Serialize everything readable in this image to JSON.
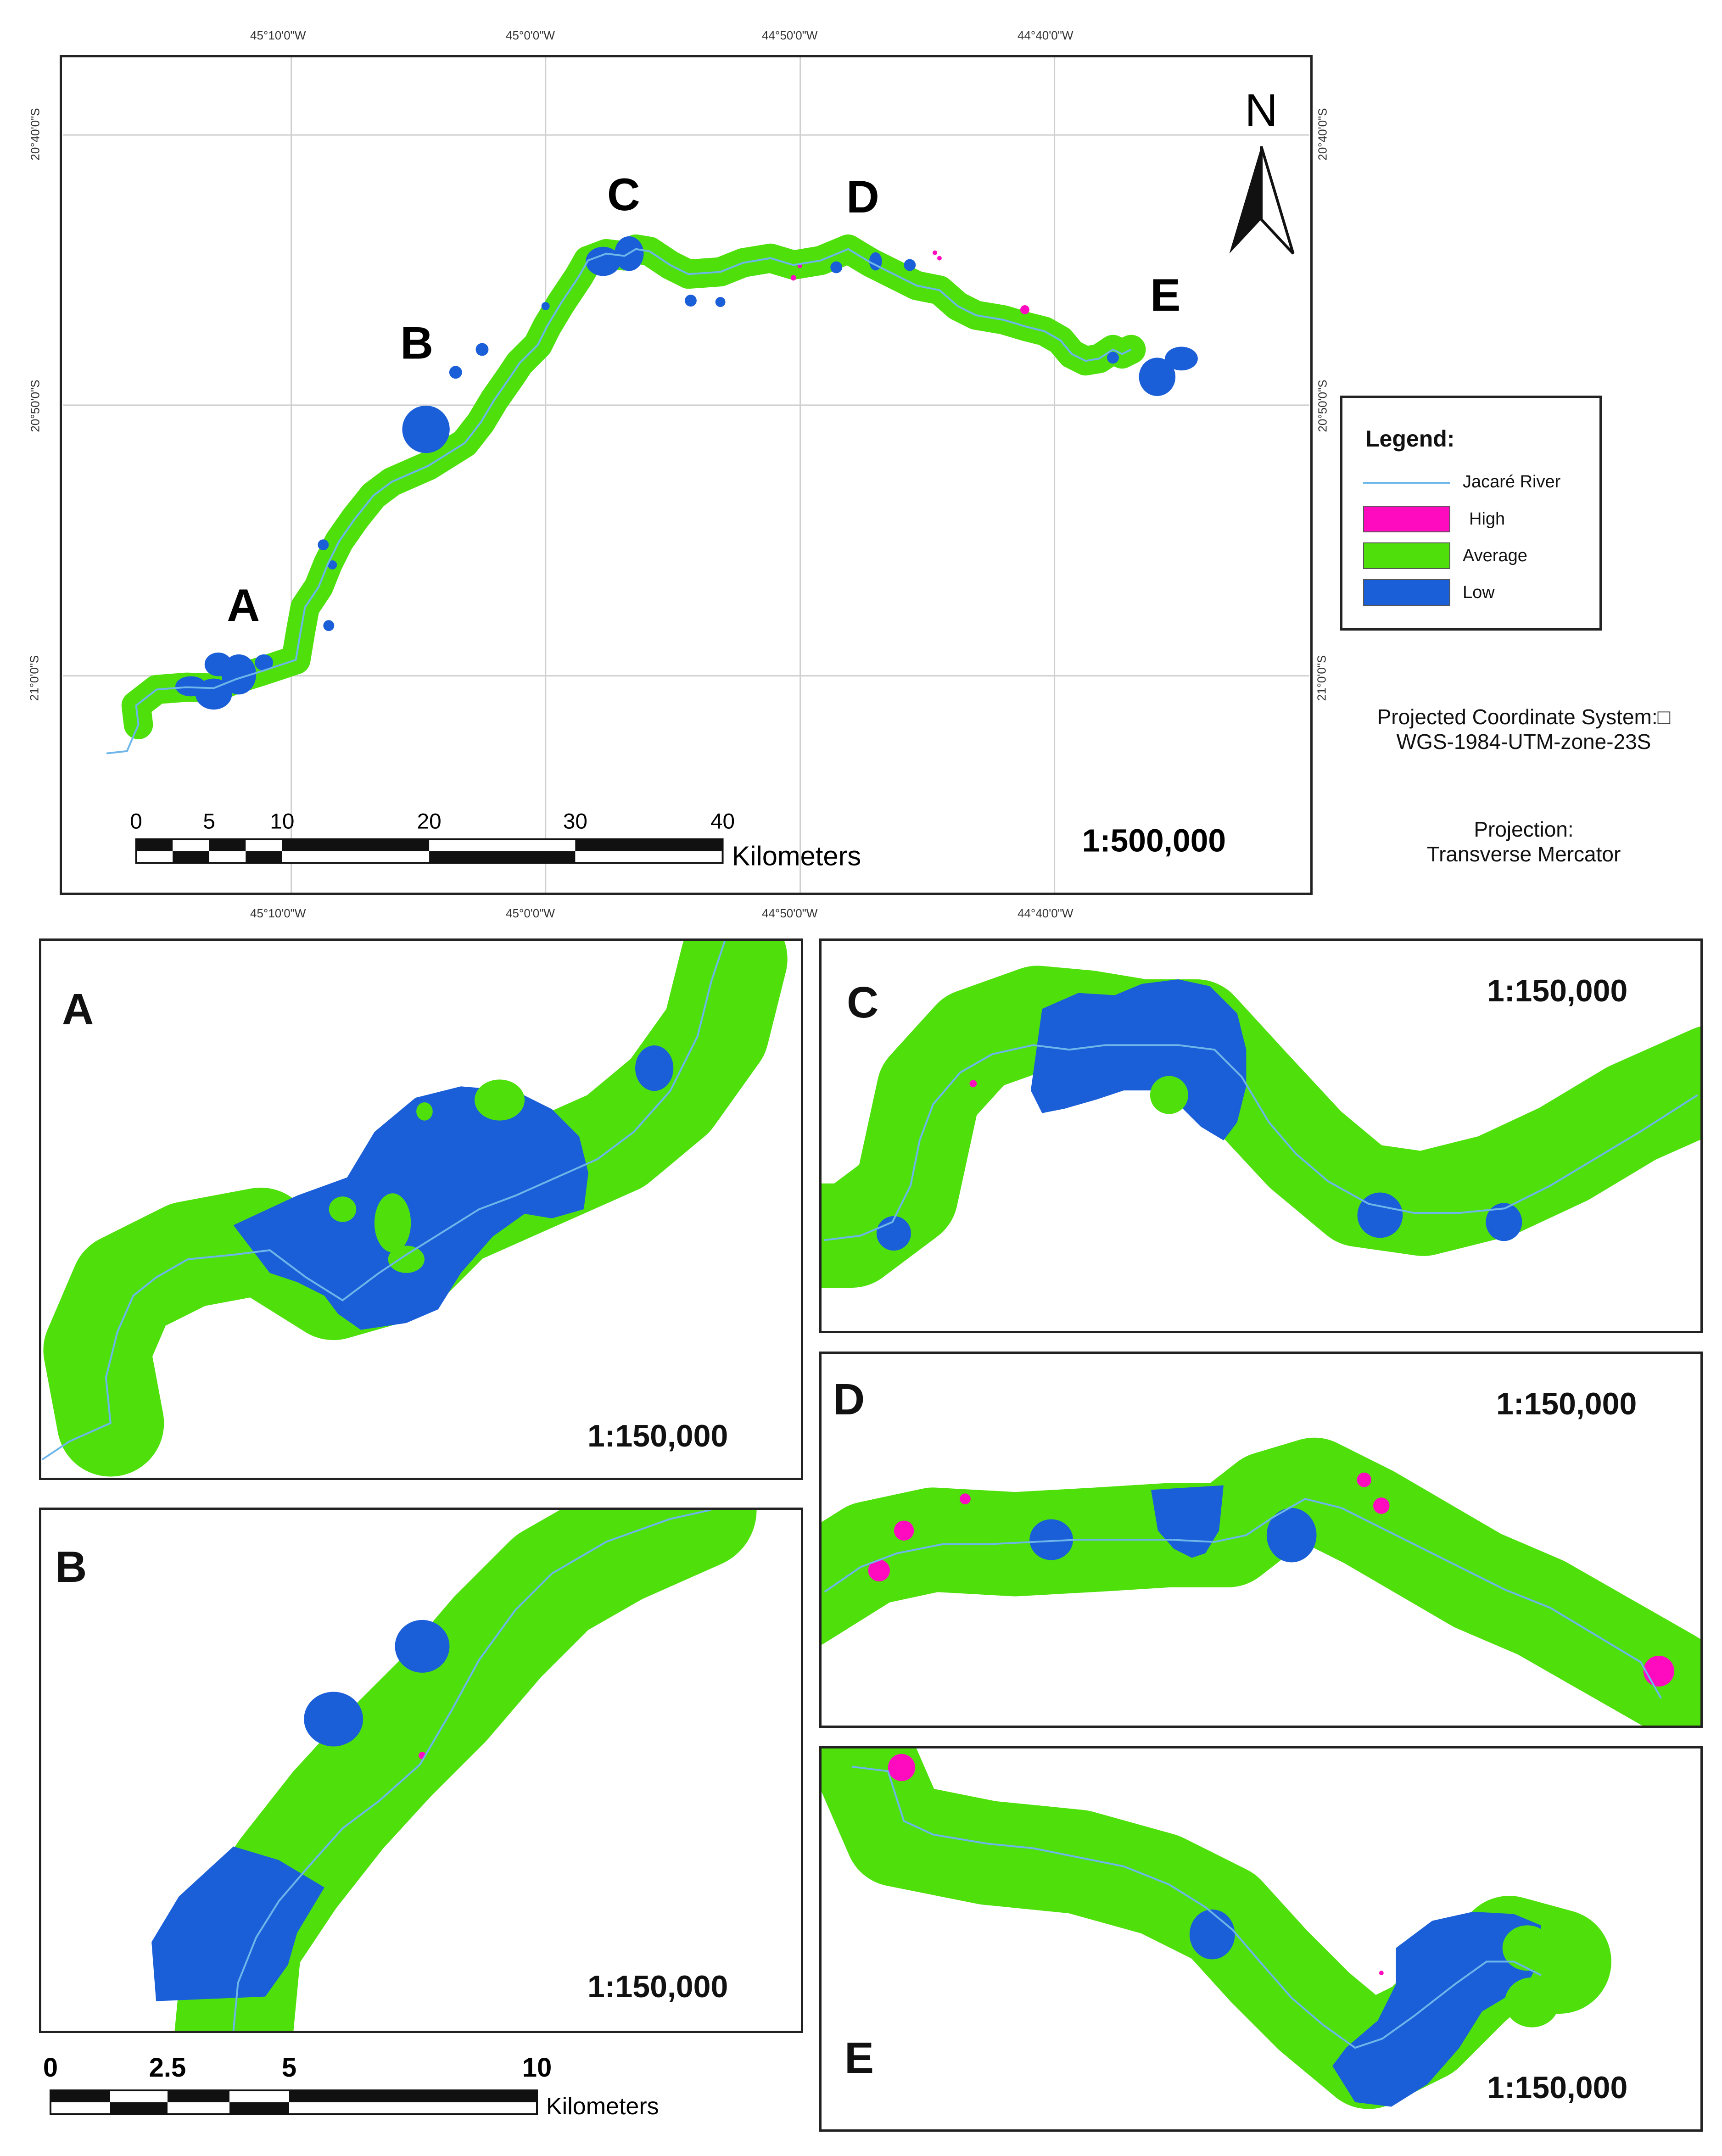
{
  "colors": {
    "high": "#ff0bbf",
    "average": "#4fe00c",
    "low": "#1b5fd8",
    "river": "#6eb6ea",
    "frame": "#222222",
    "grid": "#cfcfcf"
  },
  "main_map": {
    "top_lon_labels": [
      "45°10'0\"W",
      "45°0'0\"W",
      "44°50'0\"W",
      "44°40'0\"W"
    ],
    "bottom_lon_labels": [
      "45°10'0\"W",
      "45°0'0\"W",
      "44°50'0\"W",
      "44°40'0\"W"
    ],
    "left_lat_labels": [
      "20°40'0\"S",
      "20°50'0\"S",
      "21°0'0\"S"
    ],
    "right_lat_labels": [
      "20°40'0\"S",
      "20°50'0\"S",
      "21°0'0\"S"
    ],
    "site_labels": [
      "A",
      "B",
      "C",
      "D",
      "E"
    ],
    "north_label": "N",
    "scale_ticks": [
      "0",
      "5",
      "10",
      "20",
      "30",
      "40"
    ],
    "scale_unit": "Kilometers",
    "scale_ratio": "1:500,000"
  },
  "legend": {
    "title": "Legend:",
    "items": [
      {
        "label": "Jacaré River",
        "kind": "line",
        "color": "#6eb6ea"
      },
      {
        "label": "High",
        "kind": "swatch",
        "color": "#ff0bbf"
      },
      {
        "label": "Average",
        "kind": "swatch",
        "color": "#4fe00c"
      },
      {
        "label": "Low",
        "kind": "swatch",
        "color": "#1b5fd8"
      }
    ]
  },
  "projection": {
    "pcs_label": "Projected Coordinate System:□",
    "pcs_value": "WGS-1984-UTM-zone-23S",
    "proj_label": "Projection:",
    "proj_value": "Transverse Mercator"
  },
  "insets": [
    {
      "letter": "A",
      "scale": "1:150,000"
    },
    {
      "letter": "B",
      "scale": "1:150,000"
    },
    {
      "letter": "C",
      "scale": "1:150,000"
    },
    {
      "letter": "D",
      "scale": "1:150,000"
    },
    {
      "letter": "E",
      "scale": "1:150,000"
    }
  ],
  "inset_scalebar": {
    "ticks": [
      "0",
      "2.5",
      "5",
      "10"
    ],
    "unit": "Kilometers"
  }
}
